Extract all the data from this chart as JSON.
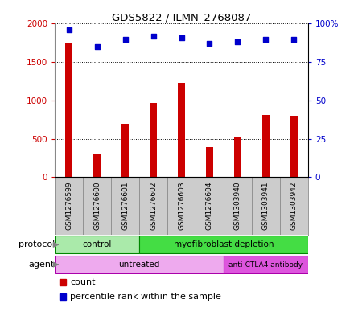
{
  "title": "GDS5822 / ILMN_2768087",
  "samples": [
    "GSM1276599",
    "GSM1276600",
    "GSM1276601",
    "GSM1276602",
    "GSM1276603",
    "GSM1276604",
    "GSM1303940",
    "GSM1303941",
    "GSM1303942"
  ],
  "counts": [
    1750,
    310,
    690,
    970,
    1230,
    390,
    515,
    810,
    800
  ],
  "percentiles": [
    96,
    85,
    90,
    92,
    91,
    87,
    88,
    90,
    90
  ],
  "ylim_left": [
    0,
    2000
  ],
  "ylim_right": [
    0,
    100
  ],
  "yticks_left": [
    0,
    500,
    1000,
    1500,
    2000
  ],
  "yticks_right": [
    0,
    25,
    50,
    75,
    100
  ],
  "ytick_labels_left": [
    "0",
    "500",
    "1000",
    "1500",
    "2000"
  ],
  "ytick_labels_right": [
    "0",
    "25",
    "50",
    "75",
    "100%"
  ],
  "bar_color": "#cc0000",
  "scatter_color": "#0000cc",
  "bar_width": 0.25,
  "protocol_groups": [
    {
      "label": "control",
      "start": 0,
      "end": 3,
      "color": "#aaeaaa"
    },
    {
      "label": "myofibroblast depletion",
      "start": 3,
      "end": 9,
      "color": "#44dd44"
    }
  ],
  "agent_groups": [
    {
      "label": "untreated",
      "start": 0,
      "end": 6,
      "color": "#eeaaee"
    },
    {
      "label": "anti-CTLA4 antibody",
      "start": 6,
      "end": 9,
      "color": "#dd55dd"
    }
  ],
  "protocol_label": "protocol",
  "agent_label": "agent",
  "grid_color": "#000000",
  "tick_color_left": "#cc0000",
  "tick_color_right": "#0000cc",
  "sample_box_color": "#cccccc",
  "sample_box_edge": "#888888",
  "legend_count_label": "count",
  "legend_pct_label": "percentile rank within the sample"
}
